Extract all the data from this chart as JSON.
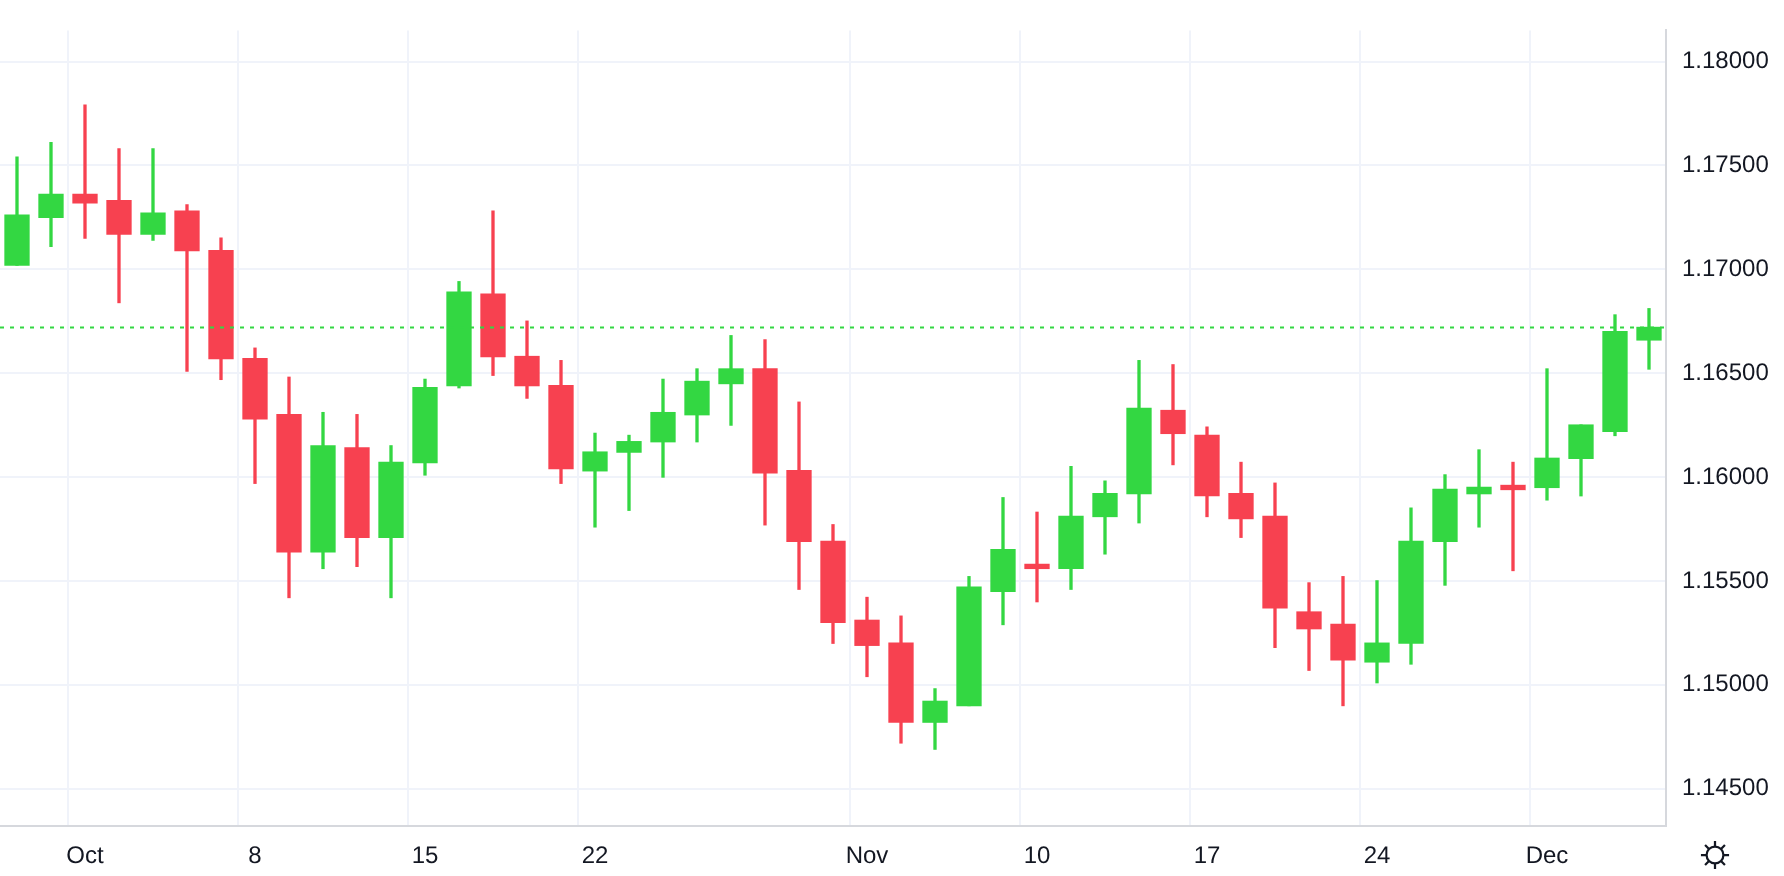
{
  "chart_data": {
    "type": "candlestick",
    "categories": [
      null,
      null,
      "Oct",
      null,
      null,
      null,
      null,
      "8",
      null,
      null,
      null,
      null,
      "15",
      null,
      null,
      null,
      null,
      "22",
      null,
      null,
      null,
      null,
      null,
      null,
      null,
      "Nov",
      null,
      null,
      null,
      null,
      "10",
      null,
      null,
      null,
      null,
      "17",
      null,
      null,
      null,
      null,
      "24",
      null,
      null,
      null,
      null,
      "Dec",
      null,
      null,
      null
    ],
    "ohlc": [
      [
        1.1702,
        1.1754,
        1.1702,
        1.1726
      ],
      [
        1.1725,
        1.1761,
        1.1711,
        1.1736
      ],
      [
        1.1736,
        1.1779,
        1.1715,
        1.1732
      ],
      [
        1.1733,
        1.1758,
        1.1684,
        1.1717
      ],
      [
        1.1717,
        1.1758,
        1.1714,
        1.1727
      ],
      [
        1.1728,
        1.1731,
        1.1651,
        1.1709
      ],
      [
        1.1709,
        1.1715,
        1.1647,
        1.1657
      ],
      [
        1.1657,
        1.1662,
        1.1597,
        1.1628
      ],
      [
        1.163,
        1.1648,
        1.1542,
        1.1564
      ],
      [
        1.1564,
        1.1631,
        1.1556,
        1.1615
      ],
      [
        1.1614,
        1.163,
        1.1557,
        1.1571
      ],
      [
        1.1571,
        1.1615,
        1.1542,
        1.1607
      ],
      [
        1.1607,
        1.1647,
        1.1601,
        1.1643
      ],
      [
        1.1644,
        1.1694,
        1.1643,
        1.1689
      ],
      [
        1.1688,
        1.1728,
        1.1649,
        1.1658
      ],
      [
        1.1658,
        1.1675,
        1.1638,
        1.1644
      ],
      [
        1.1644,
        1.1656,
        1.1597,
        1.1604
      ],
      [
        1.1603,
        1.1621,
        1.1576,
        1.1612
      ],
      [
        1.1612,
        1.162,
        1.1584,
        1.1617
      ],
      [
        1.1617,
        1.1647,
        1.16,
        1.1631
      ],
      [
        1.163,
        1.1652,
        1.1617,
        1.1646
      ],
      [
        1.1645,
        1.1668,
        1.1625,
        1.1652
      ],
      [
        1.1652,
        1.1666,
        1.1577,
        1.1602
      ],
      [
        1.1603,
        1.1636,
        1.1546,
        1.1569
      ],
      [
        1.1569,
        1.1577,
        1.152,
        1.153
      ],
      [
        1.1531,
        1.1542,
        1.1504,
        1.1519
      ],
      [
        1.152,
        1.1533,
        1.1472,
        1.1482
      ],
      [
        1.1482,
        1.1498,
        1.1469,
        1.1492
      ],
      [
        1.149,
        1.1552,
        1.149,
        1.1547
      ],
      [
        1.1545,
        1.159,
        1.1529,
        1.1565
      ],
      [
        1.1557,
        1.1583,
        1.154,
        1.1556
      ],
      [
        1.1556,
        1.1605,
        1.1546,
        1.1581
      ],
      [
        1.1581,
        1.1598,
        1.1563,
        1.1592
      ],
      [
        1.1592,
        1.1656,
        1.1578,
        1.1633
      ],
      [
        1.1632,
        1.1654,
        1.1606,
        1.1621
      ],
      [
        1.162,
        1.1624,
        1.1581,
        1.1591
      ],
      [
        1.1592,
        1.1607,
        1.1571,
        1.158
      ],
      [
        1.1581,
        1.1597,
        1.1518,
        1.1537
      ],
      [
        1.1535,
        1.1549,
        1.1507,
        1.1527
      ],
      [
        1.1529,
        1.1552,
        1.149,
        1.1512
      ],
      [
        1.1511,
        1.155,
        1.1501,
        1.152
      ],
      [
        1.152,
        1.1585,
        1.151,
        1.1569
      ],
      [
        1.1569,
        1.1601,
        1.1548,
        1.1594
      ],
      [
        1.1592,
        1.1613,
        1.1576,
        1.1595
      ],
      [
        1.1595,
        1.1607,
        1.1555,
        1.1594
      ],
      [
        1.1595,
        1.1652,
        1.1589,
        1.1609
      ],
      [
        1.1609,
        1.1625,
        1.1591,
        1.1625
      ],
      [
        1.1622,
        1.1678,
        1.162,
        1.167
      ],
      [
        1.1666,
        1.1681,
        1.1652,
        1.1672
      ]
    ],
    "colors": [
      "#33d742",
      "#33d742",
      "#f74150",
      "#f74150",
      "#33d742",
      "#f74150",
      "#f74150",
      "#f74150",
      "#f74150",
      "#33d742",
      "#f74150",
      "#33d742",
      "#33d742",
      "#33d742",
      "#f74150",
      "#f74150",
      "#f74150",
      "#33d742",
      "#33d742",
      "#33d742",
      "#33d742",
      "#33d742",
      "#f74150",
      "#f74150",
      "#f74150",
      "#f74150",
      "#f74150",
      "#33d742",
      "#33d742",
      "#33d742",
      "#f74150",
      "#33d742",
      "#33d742",
      "#33d742",
      "#f74150",
      "#f74150",
      "#f74150",
      "#f74150",
      "#f74150",
      "#f74150",
      "#33d742",
      "#33d742",
      "#33d742",
      "#33d742",
      "#f74150",
      "#33d742",
      "#33d742",
      "#33d742",
      "#33d742"
    ],
    "ylim": [
      1.1432,
      1.1815
    ],
    "yticks": [
      {
        "value": 1.145,
        "label": "1.14500"
      },
      {
        "value": 1.15,
        "label": "1.15000"
      },
      {
        "value": 1.155,
        "label": "1.15500"
      },
      {
        "value": 1.16,
        "label": "1.16000"
      },
      {
        "value": 1.165,
        "label": "1.16500"
      },
      {
        "value": 1.17,
        "label": "1.17000"
      },
      {
        "value": 1.175,
        "label": "1.17500"
      },
      {
        "value": 1.18,
        "label": "1.18000"
      }
    ],
    "ref_lines": [
      {
        "axis": "y",
        "value": 1.1672,
        "color": "#33d742",
        "line_style": "dotted"
      }
    ],
    "grid": true,
    "legend": false
  }
}
